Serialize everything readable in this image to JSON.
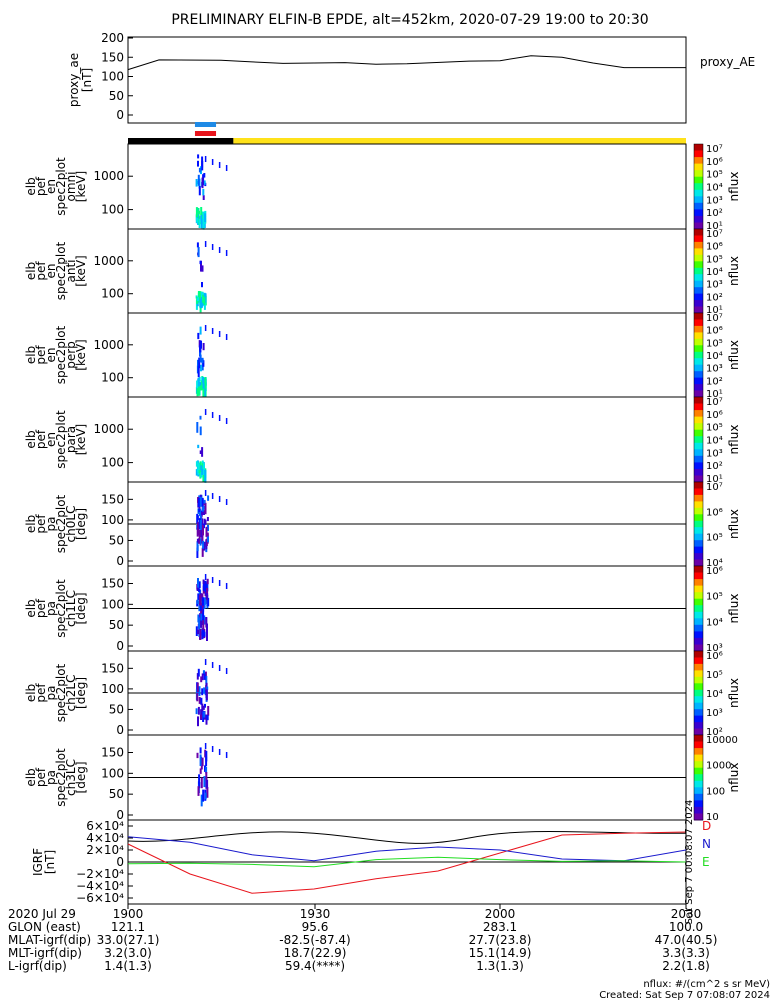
{
  "title": "PRELIMINARY ELFIN-B EPDE, alt=452km, 2020-07-29 19:00 to 20:30",
  "panels": [
    {
      "ylabel": [
        "proxy_ae",
        "[nT]"
      ],
      "right_label": "proxy_AE",
      "yticks": [
        "0",
        "50",
        "100",
        "150",
        "200"
      ]
    },
    {
      "ylabel": [
        "elb",
        "pef",
        "en",
        "spec2plot",
        "omni",
        "[keV]"
      ],
      "right_label": "nflux",
      "yticks": [
        "100",
        "1000"
      ],
      "cbar_ticks": [
        "10⁷",
        "10⁶",
        "10⁵",
        "10⁴",
        "10³",
        "10²",
        "10¹"
      ]
    },
    {
      "ylabel": [
        "elb",
        "pef",
        "en",
        "spec2plot",
        "anti",
        "[keV]"
      ],
      "right_label": "nflux",
      "yticks": [
        "100",
        "1000"
      ],
      "cbar_ticks": [
        "10⁷",
        "10⁶",
        "10⁵",
        "10⁴",
        "10³",
        "10²",
        "10¹"
      ]
    },
    {
      "ylabel": [
        "elb",
        "pef",
        "en",
        "spec2plot",
        "perp",
        "[keV]"
      ],
      "right_label": "nflux",
      "yticks": [
        "100",
        "1000"
      ],
      "cbar_ticks": [
        "10⁷",
        "10⁶",
        "10⁵",
        "10⁴",
        "10³",
        "10²",
        "10¹"
      ]
    },
    {
      "ylabel": [
        "elb",
        "pef",
        "en",
        "spec2plot",
        "para",
        "[keV]"
      ],
      "right_label": "nflux",
      "yticks": [
        "100",
        "1000"
      ],
      "cbar_ticks": [
        "10⁷",
        "10⁶",
        "10⁵",
        "10⁴",
        "10³",
        "10²",
        "10¹"
      ]
    },
    {
      "ylabel": [
        "elb",
        "pef",
        "pa",
        "spec2plot",
        "ch0LC",
        "[deg]"
      ],
      "right_label": "nflux",
      "yticks": [
        "0",
        "50",
        "100",
        "150"
      ],
      "cbar_ticks": [
        "10⁷",
        "10⁶",
        "10⁵",
        "10⁴"
      ]
    },
    {
      "ylabel": [
        "elb",
        "pef",
        "pa",
        "spec2plot",
        "ch1LC",
        "[deg]"
      ],
      "right_label": "nflux",
      "yticks": [
        "0",
        "50",
        "100",
        "150"
      ],
      "cbar_ticks": [
        "10⁶",
        "10⁵",
        "10⁴",
        "10³"
      ]
    },
    {
      "ylabel": [
        "elb",
        "pef",
        "pa",
        "spec2plot",
        "ch2LC",
        "[deg]"
      ],
      "right_label": "nflux",
      "yticks": [
        "0",
        "50",
        "100",
        "150"
      ],
      "cbar_ticks": [
        "10⁶",
        "10⁵",
        "10⁴",
        "10³",
        "10²"
      ]
    },
    {
      "ylabel": [
        "elb",
        "pef",
        "pa",
        "spec2plot",
        "ch3LC",
        "[deg]"
      ],
      "right_label": "nflux",
      "yticks": [
        "0",
        "50",
        "100",
        "150"
      ],
      "cbar_ticks": [
        "10000",
        "1000",
        "100",
        "10"
      ]
    },
    {
      "ylabel": [
        "IGRF",
        "[nT]"
      ],
      "yticks": [
        "−6×10⁴",
        "−4×10⁴",
        "−2×10⁴",
        "0",
        "2×10⁴",
        "4×10⁴",
        "6×10⁴"
      ],
      "legend": [
        "D",
        "N",
        "E"
      ],
      "colors": [
        "#e8141c",
        "#1a1acd",
        "#22dd22"
      ]
    }
  ],
  "sidebar_text": "Sat Sep  7 00:08:07 2024",
  "bottom_rows": [
    {
      "label": "2020 Jul 29",
      "values": [
        "1900",
        "1930",
        "2000",
        "2030"
      ]
    },
    {
      "label": "GLON (east)",
      "values": [
        "121.1",
        "95.6",
        "283.1",
        "100.0"
      ]
    },
    {
      "label": "MLAT-igrf(dip)",
      "values": [
        "33.0(27.1)",
        "-82.5(-87.4)",
        "27.7(23.8)",
        "47.0(40.5)"
      ]
    },
    {
      "label": "MLT-igrf(dip)",
      "values": [
        "3.2(3.0)",
        "18.7(22.9)",
        "15.1(14.9)",
        "3.3(3.3)"
      ]
    },
    {
      "label": "L-igrf(dip)",
      "values": [
        "1.4(1.3)",
        "59.4(****)",
        "1.3(1.3)",
        "2.2(1.8)"
      ]
    }
  ],
  "footer": {
    "units": "nflux: #/(cm^2 s sr MeV)",
    "created": "Created: Sat Sep  7 07:08:07 2024"
  },
  "colors": {
    "black_bar": "#000000",
    "yellow_bar": "#ffe21a",
    "blue_bar": "#1e8ae6",
    "red_bar": "#e8141c"
  },
  "chart_data": {
    "type": "line",
    "title": "PRELIMINARY ELFIN-B EPDE, alt=452km, 2020-07-29 19:00 to 20:30",
    "x_ticks": [
      "1900",
      "1930",
      "2000",
      "2030"
    ],
    "series": [
      {
        "name": "proxy_AE",
        "x": [
          "19:00",
          "19:05",
          "19:15",
          "19:20",
          "19:25",
          "19:35",
          "19:40",
          "19:45",
          "19:55",
          "20:00",
          "20:05",
          "20:10",
          "20:15",
          "20:20",
          "20:30"
        ],
        "values": [
          118,
          143,
          142,
          138,
          134,
          136,
          132,
          133,
          140,
          141,
          154,
          150,
          135,
          123,
          123
        ]
      },
      {
        "name": "D",
        "x": [
          "19:00",
          "19:10",
          "19:20",
          "19:30",
          "19:40",
          "19:50",
          "20:00",
          "20:10",
          "20:20",
          "20:30"
        ],
        "values": [
          30000,
          -20000,
          -52000,
          -45000,
          -28000,
          -15000,
          15000,
          45000,
          48000,
          50000
        ]
      },
      {
        "name": "N",
        "x": [
          "19:00",
          "19:10",
          "19:20",
          "19:30",
          "19:40",
          "19:50",
          "20:00",
          "20:10",
          "20:20",
          "20:30"
        ],
        "values": [
          42000,
          33000,
          12000,
          2000,
          18000,
          25000,
          20000,
          5000,
          2000,
          20000
        ]
      },
      {
        "name": "E",
        "x": [
          "19:00",
          "19:10",
          "19:20",
          "19:30",
          "19:40",
          "19:50",
          "20:00",
          "20:10",
          "20:20",
          "20:30"
        ],
        "values": [
          -3000,
          -2000,
          -4000,
          -8000,
          4000,
          8000,
          4000,
          1000,
          2000,
          0
        ]
      }
    ]
  }
}
